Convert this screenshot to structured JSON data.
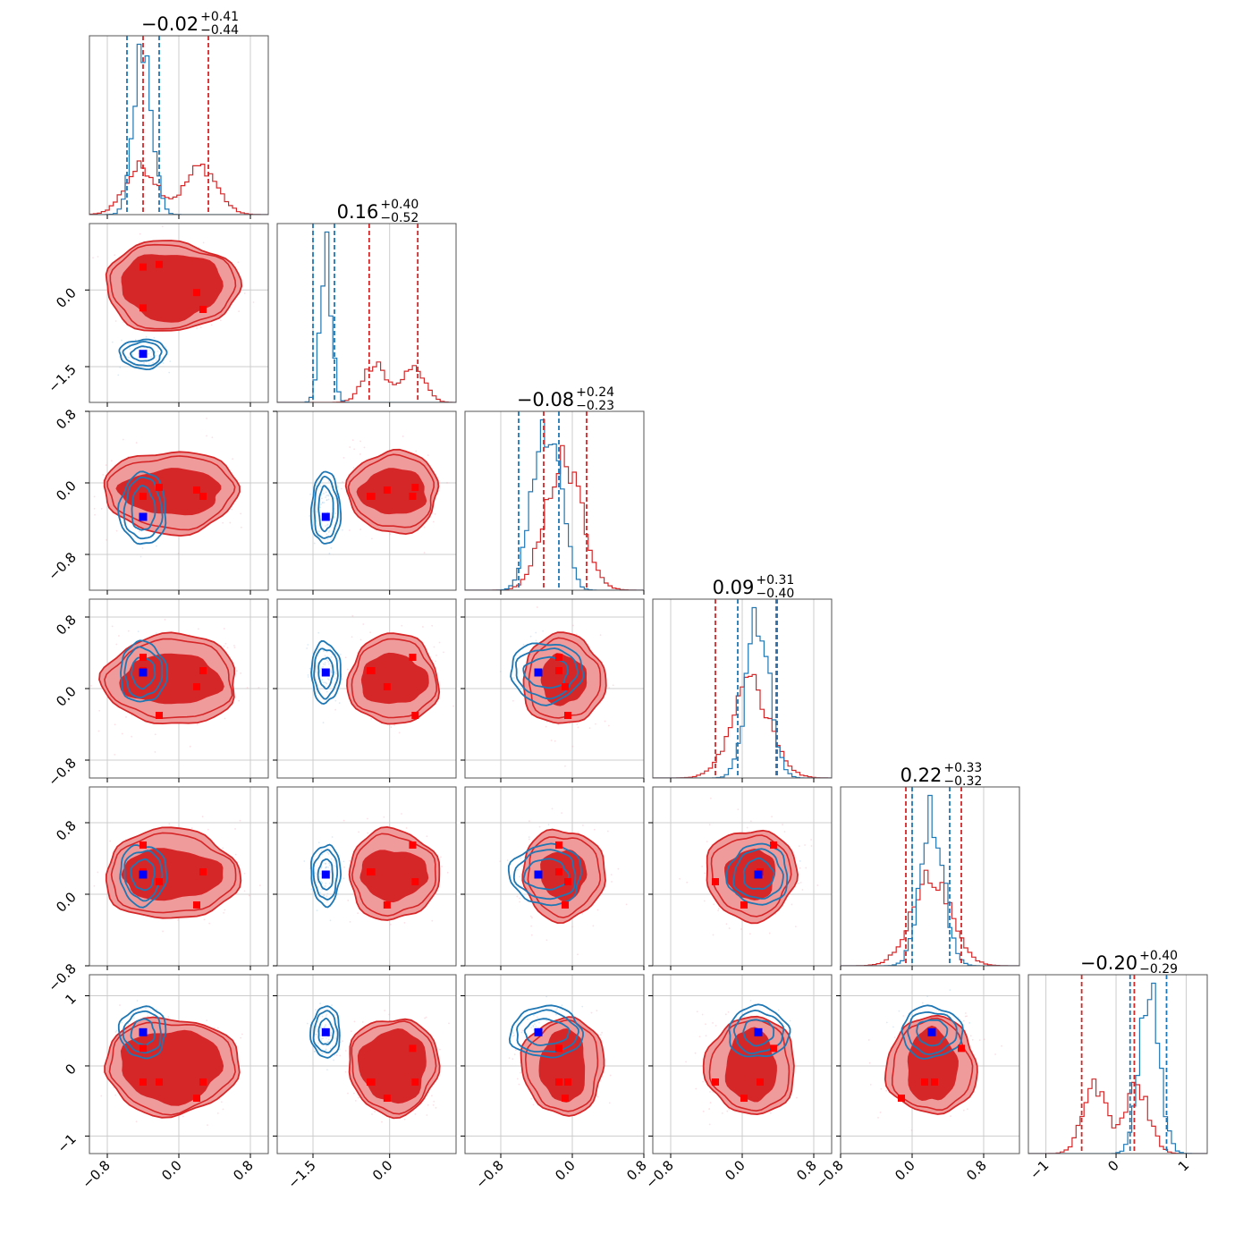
{
  "chart_data": {
    "type": "corner",
    "ndim": 6,
    "colors": {
      "blue": "#1f77b4",
      "red": "#d62728",
      "marker_blue": "#0000ff",
      "marker_red": "#ff0000",
      "red_fill_light": "#ef9a9b",
      "grid": "#cccccc",
      "spine": "#555555"
    },
    "grid": true,
    "titles": [
      {
        "median": "−0.02",
        "plus": "+0.41",
        "minus": "−0.44"
      },
      {
        "median": "0.16",
        "plus": "+0.40",
        "minus": "−0.52"
      },
      {
        "median": "−0.08",
        "plus": "+0.24",
        "minus": "−0.23"
      },
      {
        "median": "0.09",
        "plus": "+0.31",
        "minus": "−0.40"
      },
      {
        "median": "0.22",
        "plus": "+0.33",
        "minus": "−0.32"
      },
      {
        "median": "−0.20",
        "plus": "+0.40",
        "minus": "−0.29"
      }
    ],
    "ranges": [
      [
        -1.0,
        1.0
      ],
      [
        -2.2,
        1.3
      ],
      [
        -1.2,
        0.8
      ],
      [
        -1.0,
        1.0
      ],
      [
        -0.8,
        1.2
      ],
      [
        -1.25,
        1.3
      ]
    ],
    "x_ticks": [
      [
        {
          "v": -0.8,
          "label": "−0.8"
        },
        {
          "v": 0.0,
          "label": "0.0"
        },
        {
          "v": 0.8,
          "label": "0.8"
        }
      ],
      [
        {
          "v": -1.5,
          "label": "−1.5"
        },
        {
          "v": 0.0,
          "label": "0.0"
        }
      ],
      [
        {
          "v": -0.8,
          "label": "−0.8"
        },
        {
          "v": 0.0,
          "label": "0.0"
        },
        {
          "v": 0.8,
          "label": "0.8"
        }
      ],
      [
        {
          "v": -0.8,
          "label": "−0.8"
        },
        {
          "v": 0.0,
          "label": "0.0"
        },
        {
          "v": 0.8,
          "label": "0.8"
        }
      ],
      [
        {
          "v": -0.8,
          "label": "−0.8"
        },
        {
          "v": 0.0,
          "label": "0.0"
        },
        {
          "v": 0.8,
          "label": "0.8"
        }
      ],
      [
        {
          "v": -1,
          "label": "−1"
        },
        {
          "v": 0,
          "label": "0"
        },
        {
          "v": 1,
          "label": "1"
        }
      ]
    ],
    "y_ticks": [
      null,
      [
        {
          "v": 0.0,
          "label": "0.0"
        },
        {
          "v": -1.5,
          "label": "−1.5"
        }
      ],
      [
        {
          "v": 0.8,
          "label": "0.8"
        },
        {
          "v": 0.0,
          "label": "0.0"
        },
        {
          "v": -0.8,
          "label": "−0.8"
        }
      ],
      [
        {
          "v": 0.8,
          "label": "0.8"
        },
        {
          "v": 0.0,
          "label": "0.0"
        },
        {
          "v": -0.8,
          "label": "−0.8"
        }
      ],
      [
        {
          "v": 0.8,
          "label": "0.8"
        },
        {
          "v": 0.0,
          "label": "0.0"
        },
        {
          "v": -0.8,
          "label": "−0.8"
        }
      ],
      [
        {
          "v": 1,
          "label": "1"
        },
        {
          "v": 0,
          "label": "0"
        },
        {
          "v": -1,
          "label": "−1"
        }
      ]
    ],
    "quantiles": {
      "blue": [
        [
          -0.58,
          -0.22
        ],
        [
          -1.5,
          -1.08
        ],
        [
          -0.6,
          -0.15
        ],
        [
          -0.05,
          0.38
        ],
        [
          0.0,
          0.42
        ],
        [
          0.2,
          0.72
        ]
      ],
      "red": [
        [
          -0.4,
          0.33
        ],
        [
          -0.4,
          0.55
        ],
        [
          -0.32,
          0.16
        ],
        [
          -0.3,
          0.39
        ],
        [
          -0.07,
          0.55
        ],
        [
          -0.49,
          0.26
        ]
      ]
    },
    "blue_modes": [
      {
        "mean": [
          -0.4
        ],
        "sigma": [
          0.1
        ]
      },
      {
        "mean": [
          -1.25
        ],
        "sigma": [
          0.11
        ]
      },
      {
        "mean": [
          -0.38,
          -0.2
        ],
        "sigma": [
          0.12,
          0.12
        ]
      },
      {
        "mean": [
          0.18
        ],
        "sigma": [
          0.13
        ]
      },
      {
        "mean": [
          0.22
        ],
        "sigma": [
          0.13
        ]
      },
      {
        "mean": [
          0.48
        ],
        "sigma": [
          0.14
        ]
      }
    ],
    "red_modes": [
      {
        "mean": [
          -0.42,
          0.25
        ],
        "sigma": [
          0.18,
          0.18
        ]
      },
      {
        "mean": [
          -0.3,
          0.45
        ],
        "sigma": [
          0.22,
          0.22
        ]
      },
      {
        "mean": [
          -0.1
        ],
        "sigma": [
          0.2
        ]
      },
      {
        "mean": [
          0.1
        ],
        "sigma": [
          0.22
        ]
      },
      {
        "mean": [
          0.22
        ],
        "sigma": [
          0.22
        ]
      },
      {
        "mean": [
          -0.3,
          0.3
        ],
        "sigma": [
          0.17,
          0.17
        ]
      }
    ],
    "truth_blue": [
      -0.4,
      -1.25,
      -0.38,
      0.18,
      0.22,
      0.48
    ],
    "truth_red_points": [
      [
        -0.4,
        0.45,
        -0.15,
        0.35,
        0.55,
        0.25
      ],
      [
        -0.22,
        0.5,
        -0.05,
        -0.3,
        0.14,
        -0.23
      ],
      [
        0.2,
        -0.05,
        -0.08,
        0.02,
        -0.12,
        -0.46
      ],
      [
        0.27,
        -0.38,
        -0.15,
        0.2,
        0.25,
        -0.23
      ],
      [
        -0.4,
        -0.35,
        -0.15,
        0.2,
        0.25,
        -0.23
      ]
    ]
  }
}
